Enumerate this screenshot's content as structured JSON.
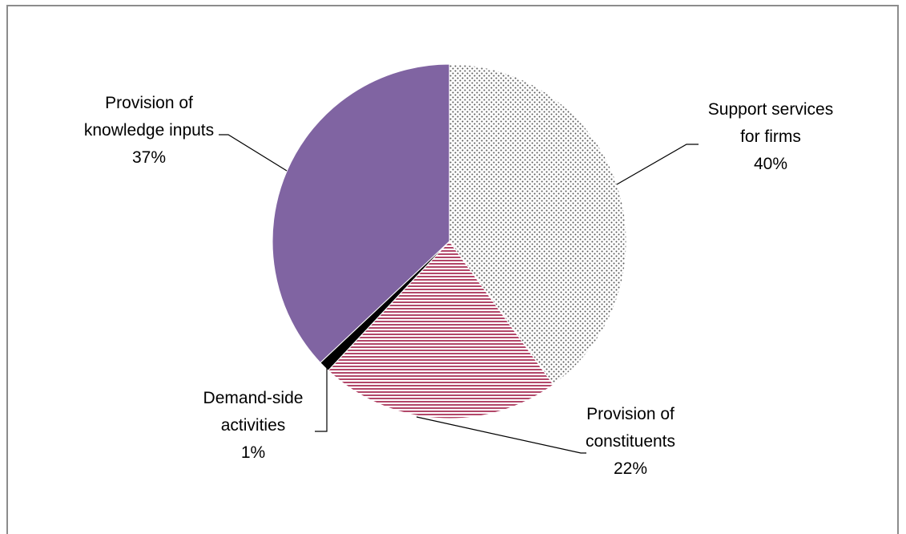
{
  "chart_data": {
    "type": "pie",
    "title": "",
    "slices": [
      {
        "label_lines": [
          "Support services",
          "for firms"
        ],
        "value": 40,
        "value_label": "40%",
        "color": "#ffffff",
        "pattern": "dots"
      },
      {
        "label_lines": [
          "Provision of",
          "constituents"
        ],
        "value": 22,
        "value_label": "22%",
        "color": "#b24769",
        "pattern": "horizontal-lines"
      },
      {
        "label_lines": [
          "Demand-side",
          "activities"
        ],
        "value": 1,
        "value_label": "1%",
        "color": "#000000",
        "pattern": "solid"
      },
      {
        "label_lines": [
          "Provision of",
          "knowledge inputs"
        ],
        "value": 37,
        "value_label": "37%",
        "color": "#8064a2",
        "pattern": "solid"
      }
    ],
    "start_angle": "12 o'clock",
    "direction": "clockwise",
    "legend": "none",
    "label_position": "outside with leader lines"
  }
}
